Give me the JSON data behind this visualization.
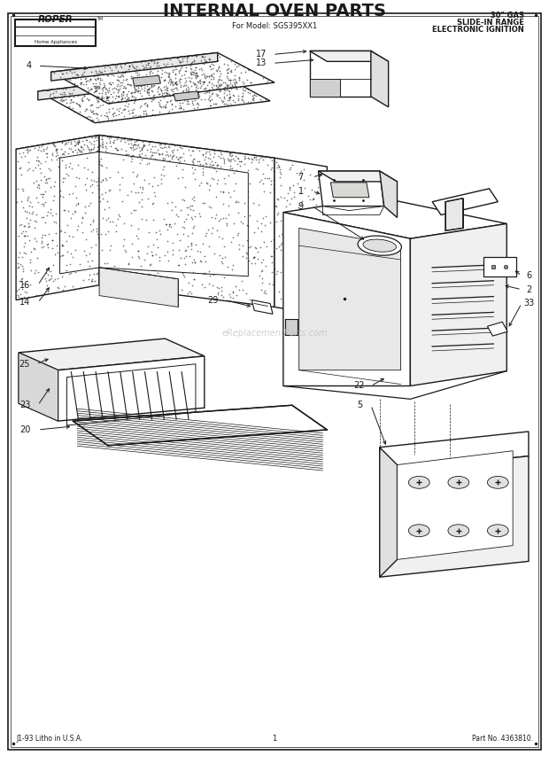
{
  "title": "INTERNAL OVEN PARTS",
  "subtitle": "For Model: SGS395XX1",
  "top_right_line1": "30\" GAS",
  "top_right_line2": "SLIDE-IN RANGE",
  "top_right_line3": "ELECTRONIC IGNITION",
  "bottom_left": "J1-93 Litho in U.S.A.",
  "bottom_center": "1",
  "bottom_right": "Part No. 4363810.",
  "brand": "ROPER",
  "brand_sub": "Home Appliances",
  "bg_color": "#ffffff",
  "line_color": "#1a1a1a",
  "watermark": "eReplacementParts.com"
}
